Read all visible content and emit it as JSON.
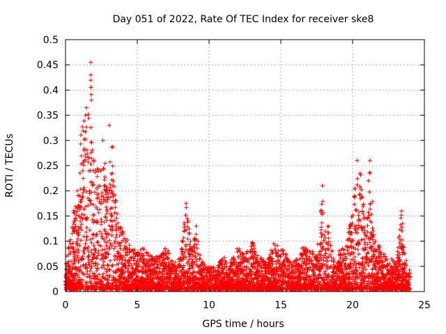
{
  "chart_data": {
    "type": "scatter",
    "title": "Day 051 of 2022, Rate Of TEC Index for receiver ske8",
    "xlabel": "GPS time / hours",
    "ylabel": "ROTI / TECUs",
    "xlim": [
      0,
      25
    ],
    "ylim": [
      0,
      0.5
    ],
    "xticks": [
      0,
      5,
      10,
      15,
      20,
      25
    ],
    "yticks": [
      0,
      0.05,
      0.1,
      0.15,
      0.2,
      0.25,
      0.3,
      0.35,
      0.4,
      0.45,
      0.5
    ],
    "xtick_labels": [
      "0",
      "5",
      "10",
      "15",
      "20",
      "25"
    ],
    "ytick_labels": [
      "0",
      "0.05",
      "0.1",
      "0.15",
      "0.2",
      "0.25",
      "0.3",
      "0.35",
      "0.4",
      "0.45",
      "0.5"
    ],
    "grid": true,
    "marker": "+",
    "marker_color": "#ff0000",
    "series": [
      {
        "name": "ROTI",
        "envelope": [
          {
            "x": 0.0,
            "y": 0.05
          },
          {
            "x": 0.3,
            "y": 0.12
          },
          {
            "x": 0.6,
            "y": 0.17
          },
          {
            "x": 0.9,
            "y": 0.21
          },
          {
            "x": 1.1,
            "y": 0.33
          },
          {
            "x": 1.3,
            "y": 0.35
          },
          {
            "x": 1.5,
            "y": 0.37
          },
          {
            "x": 1.7,
            "y": 0.38
          },
          {
            "x": 1.75,
            "y": 0.455
          },
          {
            "x": 1.9,
            "y": 0.3
          },
          {
            "x": 2.1,
            "y": 0.27
          },
          {
            "x": 2.4,
            "y": 0.24
          },
          {
            "x": 2.7,
            "y": 0.3
          },
          {
            "x": 3.0,
            "y": 0.2
          },
          {
            "x": 3.2,
            "y": 0.33
          },
          {
            "x": 3.6,
            "y": 0.16
          },
          {
            "x": 4.0,
            "y": 0.12
          },
          {
            "x": 4.5,
            "y": 0.09
          },
          {
            "x": 5.0,
            "y": 0.08
          },
          {
            "x": 5.5,
            "y": 0.09
          },
          {
            "x": 6.0,
            "y": 0.07
          },
          {
            "x": 6.5,
            "y": 0.07
          },
          {
            "x": 7.0,
            "y": 0.09
          },
          {
            "x": 7.5,
            "y": 0.06
          },
          {
            "x": 8.0,
            "y": 0.07
          },
          {
            "x": 8.4,
            "y": 0.175
          },
          {
            "x": 8.8,
            "y": 0.09
          },
          {
            "x": 9.1,
            "y": 0.13
          },
          {
            "x": 9.5,
            "y": 0.06
          },
          {
            "x": 10.0,
            "y": 0.05
          },
          {
            "x": 10.5,
            "y": 0.05
          },
          {
            "x": 11.0,
            "y": 0.07
          },
          {
            "x": 11.5,
            "y": 0.06
          },
          {
            "x": 12.0,
            "y": 0.09
          },
          {
            "x": 12.5,
            "y": 0.07
          },
          {
            "x": 13.0,
            "y": 0.1
          },
          {
            "x": 13.5,
            "y": 0.07
          },
          {
            "x": 14.0,
            "y": 0.06
          },
          {
            "x": 14.5,
            "y": 0.095
          },
          {
            "x": 15.0,
            "y": 0.09
          },
          {
            "x": 15.5,
            "y": 0.07
          },
          {
            "x": 16.0,
            "y": 0.06
          },
          {
            "x": 16.5,
            "y": 0.09
          },
          {
            "x": 17.0,
            "y": 0.09
          },
          {
            "x": 17.5,
            "y": 0.07
          },
          {
            "x": 17.9,
            "y": 0.21
          },
          {
            "x": 18.0,
            "y": 0.13
          },
          {
            "x": 18.3,
            "y": 0.13
          },
          {
            "x": 18.6,
            "y": 0.08
          },
          {
            "x": 19.0,
            "y": 0.08
          },
          {
            "x": 19.5,
            "y": 0.09
          },
          {
            "x": 20.0,
            "y": 0.16
          },
          {
            "x": 20.3,
            "y": 0.26
          },
          {
            "x": 20.6,
            "y": 0.23
          },
          {
            "x": 20.9,
            "y": 0.12
          },
          {
            "x": 21.2,
            "y": 0.26
          },
          {
            "x": 21.5,
            "y": 0.12
          },
          {
            "x": 22.0,
            "y": 0.08
          },
          {
            "x": 22.5,
            "y": 0.07
          },
          {
            "x": 23.0,
            "y": 0.06
          },
          {
            "x": 23.4,
            "y": 0.16
          },
          {
            "x": 23.7,
            "y": 0.07
          },
          {
            "x": 24.0,
            "y": 0.04
          }
        ],
        "noted_points": [
          {
            "x": 1.75,
            "y": 0.455
          },
          {
            "x": 1.75,
            "y": 0.43
          },
          {
            "x": 1.8,
            "y": 0.38
          },
          {
            "x": 1.45,
            "y": 0.365
          },
          {
            "x": 3.05,
            "y": 0.33
          },
          {
            "x": 2.6,
            "y": 0.3
          },
          {
            "x": 8.4,
            "y": 0.175
          },
          {
            "x": 17.9,
            "y": 0.21
          },
          {
            "x": 20.3,
            "y": 0.26
          },
          {
            "x": 21.2,
            "y": 0.26
          },
          {
            "x": 21.1,
            "y": 0.22
          },
          {
            "x": 23.4,
            "y": 0.16
          },
          {
            "x": 9.1,
            "y": 0.13
          },
          {
            "x": 18.3,
            "y": 0.13
          },
          {
            "x": 14.5,
            "y": 0.095
          }
        ]
      }
    ]
  }
}
